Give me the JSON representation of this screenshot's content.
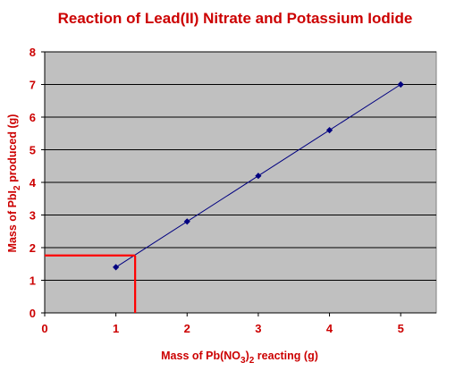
{
  "chart_data": {
    "type": "scatter",
    "title": "Reaction of Lead(II) Nitrate and Potassium Iodide",
    "xlabel": {
      "parts": [
        {
          "text": "Mass of Pb(NO",
          "sub": false
        },
        {
          "text": "3",
          "sub": true
        },
        {
          "text": ")",
          "sub": false
        },
        {
          "text": "2",
          "sub": true
        },
        {
          "text": " reacting (g)",
          "sub": false
        }
      ]
    },
    "ylabel": {
      "parts": [
        {
          "text": "Mass of PbI",
          "sub": false
        },
        {
          "text": "2",
          "sub": true
        },
        {
          "text": " produced (g)",
          "sub": false
        }
      ]
    },
    "xlim": [
      0,
      5.5
    ],
    "ylim": [
      0,
      8
    ],
    "x_ticks": [
      0,
      1,
      2,
      3,
      4,
      5
    ],
    "y_ticks": [
      0,
      1,
      2,
      3,
      4,
      5,
      6,
      7,
      8
    ],
    "horizontal_grid": true,
    "series": [
      {
        "points": [
          {
            "x": 1,
            "y": 1.4
          },
          {
            "x": 2,
            "y": 2.8
          },
          {
            "x": 3,
            "y": 4.2
          },
          {
            "x": 4,
            "y": 5.6
          },
          {
            "x": 5,
            "y": 7.0
          }
        ]
      }
    ],
    "reading_lines": {
      "x": 1.27,
      "y": 1.76
    },
    "colors": {
      "title": "#cc0000",
      "axis_text": "#cc0000",
      "plot_background": "#c0c0c0",
      "gridline": "#000000",
      "series": "#000080",
      "reading_lines": "#ff0000"
    }
  }
}
